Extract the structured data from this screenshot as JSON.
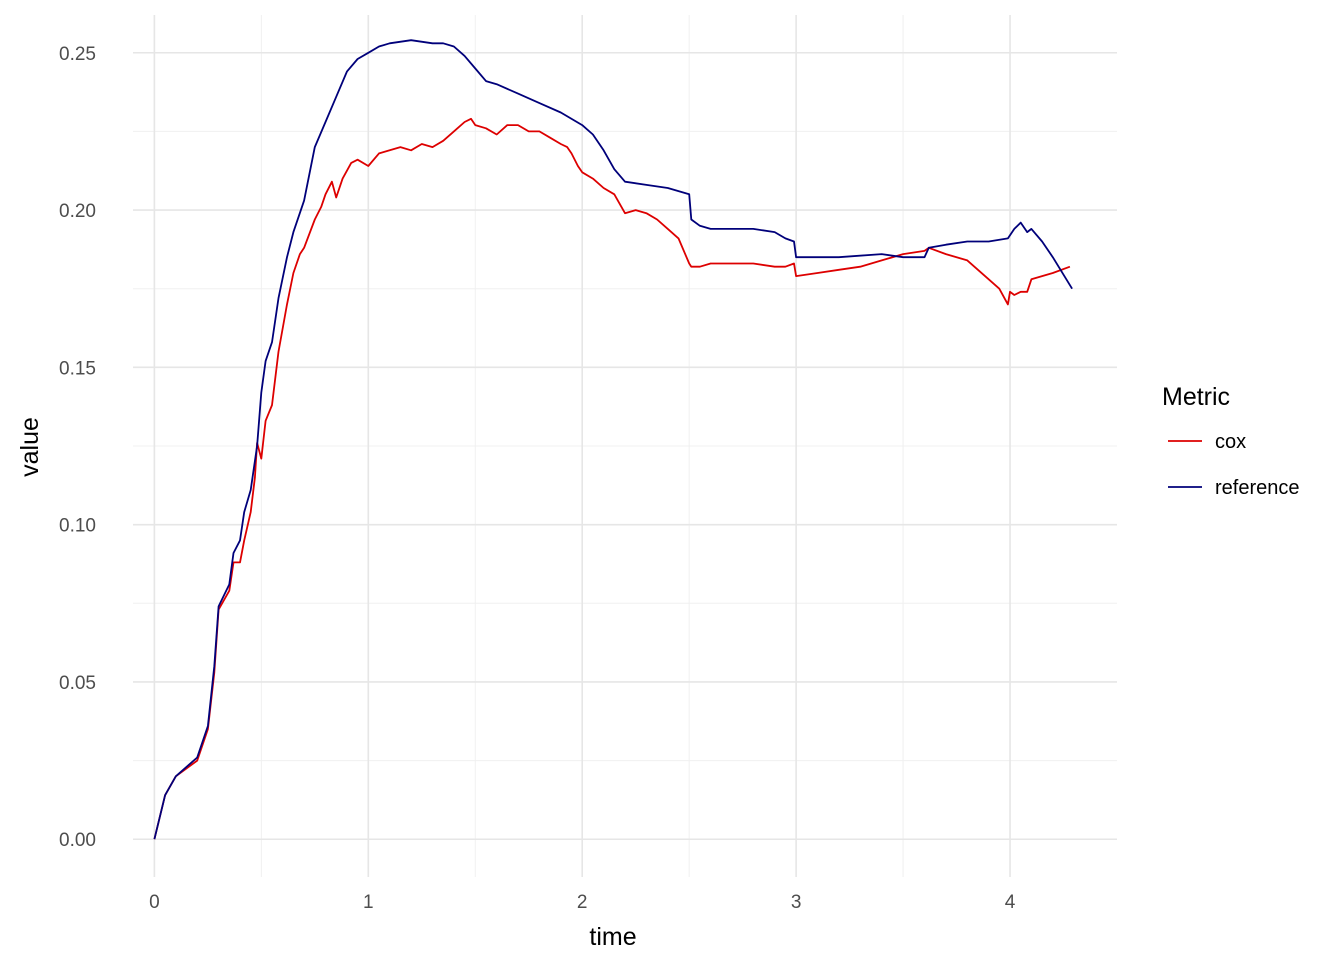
{
  "chart_data": {
    "type": "line",
    "title": "",
    "xlabel": "time",
    "ylabel": "value",
    "xlim": [
      -0.1,
      4.5
    ],
    "ylim": [
      -0.012,
      0.262
    ],
    "x_ticks": [
      0,
      1,
      2,
      3,
      4
    ],
    "x_tick_labels": [
      "0",
      "1",
      "2",
      "3",
      "4"
    ],
    "y_ticks": [
      0.0,
      0.05,
      0.1,
      0.15,
      0.2,
      0.25
    ],
    "y_tick_labels": [
      "0.00",
      "0.05",
      "0.10",
      "0.15",
      "0.20",
      "0.25"
    ],
    "grid": true,
    "legend": {
      "title": "Metric",
      "position": "right"
    },
    "series": [
      {
        "name": "cox",
        "color": "#dd0000",
        "x": [
          0.0,
          0.05,
          0.1,
          0.2,
          0.25,
          0.28,
          0.3,
          0.35,
          0.37,
          0.4,
          0.42,
          0.45,
          0.47,
          0.48,
          0.5,
          0.52,
          0.55,
          0.58,
          0.62,
          0.65,
          0.68,
          0.7,
          0.75,
          0.78,
          0.8,
          0.83,
          0.85,
          0.88,
          0.92,
          0.95,
          1.0,
          1.05,
          1.1,
          1.15,
          1.2,
          1.25,
          1.3,
          1.35,
          1.4,
          1.45,
          1.48,
          1.5,
          1.55,
          1.6,
          1.65,
          1.7,
          1.75,
          1.8,
          1.85,
          1.9,
          1.93,
          1.95,
          1.98,
          2.0,
          2.05,
          2.1,
          2.15,
          2.2,
          2.25,
          2.3,
          2.35,
          2.4,
          2.45,
          2.5,
          2.51,
          2.55,
          2.6,
          2.7,
          2.8,
          2.9,
          2.95,
          2.99,
          3.0,
          3.1,
          3.2,
          3.3,
          3.4,
          3.5,
          3.6,
          3.62,
          3.7,
          3.8,
          3.9,
          3.95,
          3.99,
          4.0,
          4.02,
          4.05,
          4.08,
          4.1,
          4.2,
          4.28
        ],
        "y": [
          0.0,
          0.014,
          0.02,
          0.025,
          0.035,
          0.053,
          0.073,
          0.079,
          0.088,
          0.088,
          0.095,
          0.104,
          0.115,
          0.126,
          0.121,
          0.133,
          0.138,
          0.155,
          0.17,
          0.18,
          0.186,
          0.188,
          0.197,
          0.201,
          0.205,
          0.209,
          0.204,
          0.21,
          0.215,
          0.216,
          0.214,
          0.218,
          0.219,
          0.22,
          0.219,
          0.221,
          0.22,
          0.222,
          0.225,
          0.228,
          0.229,
          0.227,
          0.226,
          0.224,
          0.227,
          0.227,
          0.225,
          0.225,
          0.223,
          0.221,
          0.22,
          0.218,
          0.214,
          0.212,
          0.21,
          0.207,
          0.205,
          0.199,
          0.2,
          0.199,
          0.197,
          0.194,
          0.191,
          0.183,
          0.182,
          0.182,
          0.183,
          0.183,
          0.183,
          0.182,
          0.182,
          0.183,
          0.179,
          0.18,
          0.181,
          0.182,
          0.184,
          0.186,
          0.187,
          0.188,
          0.186,
          0.184,
          0.178,
          0.175,
          0.17,
          0.174,
          0.173,
          0.174,
          0.174,
          0.178,
          0.18,
          0.182
        ]
      },
      {
        "name": "reference",
        "color": "#00007a",
        "x": [
          0.0,
          0.05,
          0.1,
          0.2,
          0.25,
          0.28,
          0.3,
          0.35,
          0.37,
          0.4,
          0.42,
          0.45,
          0.48,
          0.5,
          0.52,
          0.55,
          0.58,
          0.62,
          0.65,
          0.7,
          0.75,
          0.8,
          0.85,
          0.9,
          0.95,
          1.0,
          1.05,
          1.1,
          1.2,
          1.3,
          1.35,
          1.4,
          1.45,
          1.5,
          1.55,
          1.6,
          1.7,
          1.8,
          1.9,
          2.0,
          2.05,
          2.1,
          2.15,
          2.2,
          2.3,
          2.4,
          2.5,
          2.51,
          2.55,
          2.6,
          2.7,
          2.8,
          2.9,
          2.95,
          2.99,
          3.0,
          3.2,
          3.4,
          3.5,
          3.6,
          3.62,
          3.7,
          3.8,
          3.9,
          3.99,
          4.02,
          4.05,
          4.08,
          4.1,
          4.15,
          4.2,
          4.29
        ],
        "y": [
          0.0,
          0.014,
          0.02,
          0.026,
          0.036,
          0.055,
          0.074,
          0.081,
          0.091,
          0.095,
          0.104,
          0.111,
          0.125,
          0.142,
          0.152,
          0.158,
          0.172,
          0.185,
          0.193,
          0.203,
          0.22,
          0.228,
          0.236,
          0.244,
          0.248,
          0.25,
          0.252,
          0.253,
          0.254,
          0.253,
          0.253,
          0.252,
          0.249,
          0.245,
          0.241,
          0.24,
          0.237,
          0.234,
          0.231,
          0.227,
          0.224,
          0.219,
          0.213,
          0.209,
          0.208,
          0.207,
          0.205,
          0.197,
          0.195,
          0.194,
          0.194,
          0.194,
          0.193,
          0.191,
          0.19,
          0.185,
          0.185,
          0.186,
          0.185,
          0.185,
          0.188,
          0.189,
          0.19,
          0.19,
          0.191,
          0.194,
          0.196,
          0.193,
          0.194,
          0.19,
          0.185,
          0.175
        ]
      }
    ]
  }
}
